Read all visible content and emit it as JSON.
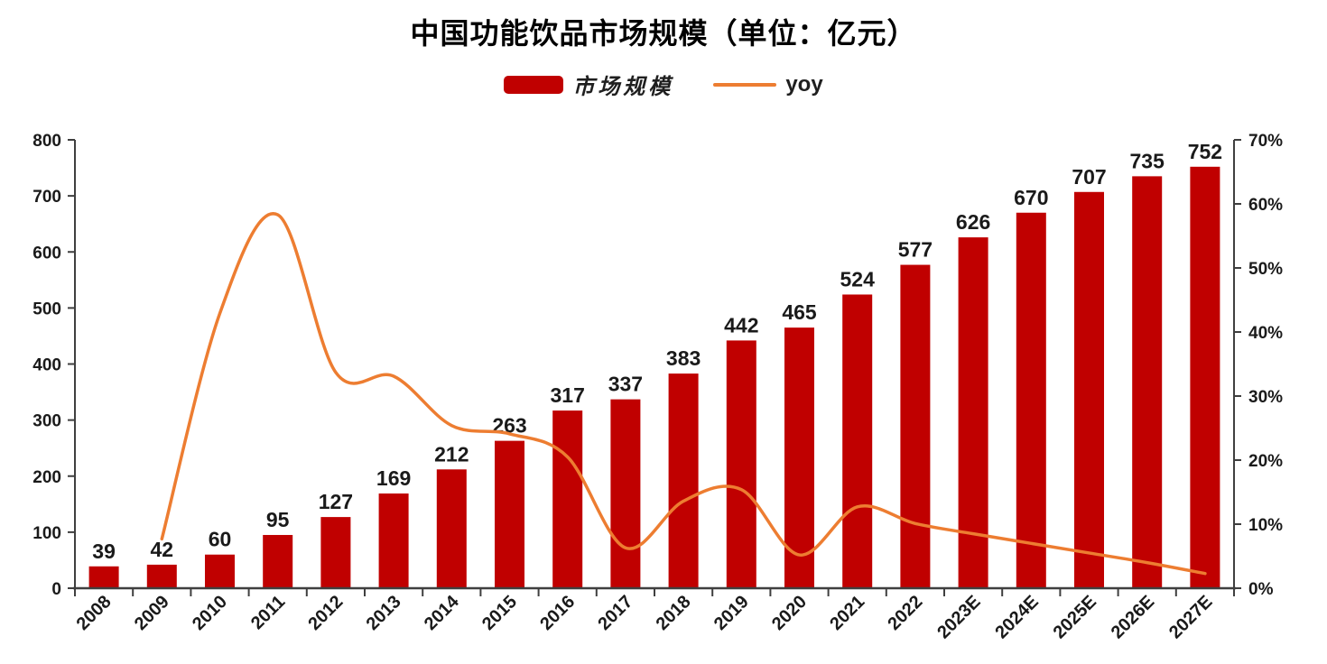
{
  "title": "中国功能饮品市场规模（单位：亿元）",
  "legend": [
    {
      "label": "市场规模",
      "type": "bar",
      "color": "#c00000"
    },
    {
      "label": "yoy",
      "type": "line",
      "color": "#ed7d31"
    }
  ],
  "colors": {
    "bar": "#c00000",
    "line": "#ed7d31",
    "axis": "#3f3f3f",
    "text": "#1a1a1a",
    "title": "#000000"
  },
  "chart_data": {
    "type": "bar",
    "subtype": "bar-line-combo",
    "title": "中国功能饮品市场规模（单位：亿元）",
    "xlabel": "",
    "ylabel_left": "",
    "ylabel_right": "",
    "grid": false,
    "legend_position": "top",
    "categories": [
      "2008",
      "2009",
      "2010",
      "2011",
      "2012",
      "2013",
      "2014",
      "2015",
      "2016",
      "2017",
      "2018",
      "2019",
      "2020",
      "2021",
      "2022",
      "2023E",
      "2024E",
      "2025E",
      "2026E",
      "2027E"
    ],
    "series": [
      {
        "name": "市场规模",
        "type": "bar",
        "axis": "left",
        "unit": "亿元",
        "color": "#c00000",
        "values": [
          39,
          42,
          60,
          95,
          127,
          169,
          212,
          263,
          317,
          337,
          383,
          442,
          465,
          524,
          577,
          626,
          670,
          707,
          735,
          752
        ],
        "data_labels": [
          "39",
          "42",
          "60",
          "95",
          "127",
          "169",
          "212",
          "263",
          "317",
          "337",
          "383",
          "442",
          "465",
          "524",
          "577",
          "626",
          "670",
          "707",
          "735",
          "752"
        ]
      },
      {
        "name": "yoy",
        "type": "line",
        "axis": "right",
        "unit": "%",
        "color": "#ed7d31",
        "smooth": true,
        "values": [
          null,
          7.7,
          42.9,
          58.3,
          33.7,
          33.1,
          25.4,
          24.1,
          20.5,
          6.3,
          13.6,
          15.4,
          5.2,
          12.7,
          10.1,
          8.5,
          7.0,
          5.5,
          4.0,
          2.3
        ]
      }
    ],
    "left_axis": {
      "min": 0,
      "max": 800,
      "step": 100,
      "ticks": [
        "0",
        "100",
        "200",
        "300",
        "400",
        "500",
        "600",
        "700",
        "800"
      ]
    },
    "right_axis": {
      "min": 0,
      "max": 70,
      "step": 10,
      "ticks": [
        "0%",
        "10%",
        "20%",
        "30%",
        "40%",
        "50%",
        "60%",
        "70%"
      ]
    }
  }
}
